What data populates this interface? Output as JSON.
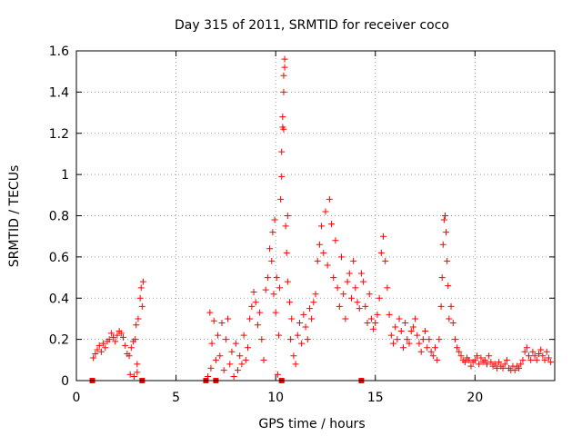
{
  "chart_data": {
    "type": "scatter",
    "title": "Day 315 of 2011, SRMTID for receiver coco",
    "xlabel": "GPS time / hours",
    "ylabel": "SRMTID / TECUs",
    "xlim": [
      0,
      24
    ],
    "ylim": [
      0,
      1.6
    ],
    "xticks": [
      0,
      5,
      10,
      15,
      20
    ],
    "xtick_labels": [
      "0",
      "5",
      "10",
      "15",
      "20"
    ],
    "yticks": [
      0,
      0.2,
      0.4,
      0.6,
      0.8,
      1,
      1.2,
      1.4,
      1.6
    ],
    "ytick_labels": [
      "0",
      "0.2",
      "0.4",
      "0.6",
      "0.8",
      "1",
      "1.2",
      "1.4",
      "1.6"
    ],
    "grid": true,
    "marker": "plus",
    "marker_color": "#ff0000",
    "series": [
      {
        "name": "SRMTID",
        "points": [
          [
            0.85,
            0.11
          ],
          [
            0.95,
            0.13
          ],
          [
            1.05,
            0.15
          ],
          [
            1.15,
            0.17
          ],
          [
            1.25,
            0.14
          ],
          [
            1.35,
            0.18
          ],
          [
            1.45,
            0.16
          ],
          [
            1.55,
            0.19
          ],
          [
            1.65,
            0.2
          ],
          [
            1.75,
            0.23
          ],
          [
            1.85,
            0.21
          ],
          [
            1.95,
            0.19
          ],
          [
            2.05,
            0.22
          ],
          [
            2.15,
            0.24
          ],
          [
            2.25,
            0.23
          ],
          [
            2.35,
            0.21
          ],
          [
            2.45,
            0.17
          ],
          [
            2.55,
            0.13
          ],
          [
            2.65,
            0.12
          ],
          [
            2.75,
            0.16
          ],
          [
            2.85,
            0.19
          ],
          [
            2.95,
            0.2
          ],
          [
            3.05,
            0.08
          ],
          [
            2.7,
            0.03
          ],
          [
            2.9,
            0.02
          ],
          [
            3.0,
            0.27
          ],
          [
            3.1,
            0.3
          ],
          [
            3.2,
            0.4
          ],
          [
            3.25,
            0.45
          ],
          [
            3.3,
            0.36
          ],
          [
            3.35,
            0.48
          ],
          [
            3.05,
            0.04
          ],
          [
            6.6,
            0.02
          ],
          [
            6.7,
            0.33
          ],
          [
            6.75,
            0.06
          ],
          [
            6.8,
            0.18
          ],
          [
            6.9,
            0.29
          ],
          [
            7.0,
            0.1
          ],
          [
            7.1,
            0.22
          ],
          [
            7.2,
            0.12
          ],
          [
            7.3,
            0.28
          ],
          [
            7.4,
            0.05
          ],
          [
            7.5,
            0.2
          ],
          [
            7.6,
            0.3
          ],
          [
            7.7,
            0.08
          ],
          [
            7.8,
            0.14
          ],
          [
            7.9,
            0.02
          ],
          [
            8.0,
            0.18
          ],
          [
            8.1,
            0.05
          ],
          [
            8.2,
            0.12
          ],
          [
            8.3,
            0.08
          ],
          [
            8.4,
            0.22
          ],
          [
            8.5,
            0.1
          ],
          [
            8.6,
            0.16
          ],
          [
            8.7,
            0.3
          ],
          [
            8.8,
            0.36
          ],
          [
            8.9,
            0.43
          ],
          [
            9.0,
            0.38
          ],
          [
            9.1,
            0.27
          ],
          [
            9.2,
            0.33
          ],
          [
            9.3,
            0.2
          ],
          [
            9.4,
            0.1
          ],
          [
            9.5,
            0.44
          ],
          [
            9.6,
            0.5
          ],
          [
            9.7,
            0.64
          ],
          [
            9.8,
            0.58
          ],
          [
            9.85,
            0.72
          ],
          [
            9.9,
            0.42
          ],
          [
            9.95,
            0.78
          ],
          [
            10.0,
            0.33
          ],
          [
            10.05,
            0.5
          ],
          [
            10.1,
            0.03
          ],
          [
            10.15,
            0.22
          ],
          [
            10.2,
            0.45
          ],
          [
            10.25,
            0.88
          ],
          [
            10.3,
            0.99
          ],
          [
            10.3,
            1.11
          ],
          [
            10.35,
            1.23
          ],
          [
            10.35,
            1.28
          ],
          [
            10.4,
            1.4
          ],
          [
            10.4,
            1.48
          ],
          [
            10.45,
            1.52
          ],
          [
            10.45,
            1.56
          ],
          [
            10.4,
            1.22
          ],
          [
            10.5,
            0.75
          ],
          [
            10.55,
            0.62
          ],
          [
            10.6,
            0.48
          ],
          [
            10.6,
            0.8
          ],
          [
            10.7,
            0.38
          ],
          [
            10.75,
            0.2
          ],
          [
            10.8,
            0.3
          ],
          [
            10.9,
            0.12
          ],
          [
            11.0,
            0.08
          ],
          [
            11.1,
            0.22
          ],
          [
            11.2,
            0.28
          ],
          [
            11.3,
            0.18
          ],
          [
            11.4,
            0.32
          ],
          [
            11.5,
            0.26
          ],
          [
            11.6,
            0.2
          ],
          [
            11.7,
            0.35
          ],
          [
            11.8,
            0.3
          ],
          [
            11.9,
            0.38
          ],
          [
            12.0,
            0.42
          ],
          [
            12.1,
            0.58
          ],
          [
            12.2,
            0.66
          ],
          [
            12.3,
            0.75
          ],
          [
            12.4,
            0.62
          ],
          [
            12.5,
            0.82
          ],
          [
            12.6,
            0.56
          ],
          [
            12.7,
            0.88
          ],
          [
            12.8,
            0.76
          ],
          [
            12.9,
            0.5
          ],
          [
            13.0,
            0.68
          ],
          [
            13.1,
            0.45
          ],
          [
            13.2,
            0.36
          ],
          [
            13.3,
            0.6
          ],
          [
            13.4,
            0.42
          ],
          [
            13.5,
            0.3
          ],
          [
            13.6,
            0.48
          ],
          [
            13.7,
            0.52
          ],
          [
            13.8,
            0.4
          ],
          [
            13.9,
            0.58
          ],
          [
            14.0,
            0.45
          ],
          [
            14.1,
            0.38
          ],
          [
            14.2,
            0.35
          ],
          [
            14.3,
            0.52
          ],
          [
            14.4,
            0.48
          ],
          [
            14.5,
            0.36
          ],
          [
            14.6,
            0.28
          ],
          [
            14.7,
            0.42
          ],
          [
            14.8,
            0.3
          ],
          [
            14.9,
            0.25
          ],
          [
            15.0,
            0.28
          ],
          [
            15.1,
            0.32
          ],
          [
            15.2,
            0.4
          ],
          [
            15.3,
            0.62
          ],
          [
            15.4,
            0.7
          ],
          [
            15.5,
            0.58
          ],
          [
            15.6,
            0.45
          ],
          [
            15.7,
            0.32
          ],
          [
            15.8,
            0.22
          ],
          [
            15.9,
            0.18
          ],
          [
            16.0,
            0.26
          ],
          [
            16.1,
            0.2
          ],
          [
            16.2,
            0.3
          ],
          [
            16.3,
            0.24
          ],
          [
            16.4,
            0.16
          ],
          [
            16.5,
            0.28
          ],
          [
            16.6,
            0.2
          ],
          [
            16.7,
            0.18
          ],
          [
            16.8,
            0.24
          ],
          [
            16.9,
            0.26
          ],
          [
            17.0,
            0.3
          ],
          [
            17.1,
            0.22
          ],
          [
            17.2,
            0.18
          ],
          [
            17.3,
            0.14
          ],
          [
            17.4,
            0.2
          ],
          [
            17.5,
            0.24
          ],
          [
            17.6,
            0.16
          ],
          [
            17.7,
            0.2
          ],
          [
            17.8,
            0.14
          ],
          [
            17.9,
            0.12
          ],
          [
            18.0,
            0.16
          ],
          [
            18.1,
            0.1
          ],
          [
            18.2,
            0.2
          ],
          [
            18.3,
            0.36
          ],
          [
            18.35,
            0.5
          ],
          [
            18.4,
            0.66
          ],
          [
            18.45,
            0.78
          ],
          [
            18.5,
            0.8
          ],
          [
            18.55,
            0.72
          ],
          [
            18.6,
            0.58
          ],
          [
            18.65,
            0.46
          ],
          [
            18.7,
            0.3
          ],
          [
            18.8,
            0.36
          ],
          [
            18.9,
            0.28
          ],
          [
            19.0,
            0.2
          ],
          [
            19.1,
            0.16
          ],
          [
            19.2,
            0.14
          ],
          [
            19.3,
            0.12
          ],
          [
            19.4,
            0.1
          ],
          [
            19.5,
            0.09
          ],
          [
            19.6,
            0.11
          ],
          [
            19.7,
            0.1
          ],
          [
            19.8,
            0.07
          ],
          [
            19.9,
            0.09
          ],
          [
            20.0,
            0.1
          ],
          [
            20.1,
            0.12
          ],
          [
            20.2,
            0.08
          ],
          [
            20.3,
            0.11
          ],
          [
            20.4,
            0.09
          ],
          [
            20.5,
            0.1
          ],
          [
            20.6,
            0.08
          ],
          [
            20.7,
            0.12
          ],
          [
            20.8,
            0.09
          ],
          [
            20.9,
            0.07
          ],
          [
            21.0,
            0.08
          ],
          [
            21.1,
            0.06
          ],
          [
            21.2,
            0.09
          ],
          [
            21.3,
            0.07
          ],
          [
            21.4,
            0.06
          ],
          [
            21.5,
            0.08
          ],
          [
            21.6,
            0.1
          ],
          [
            21.7,
            0.06
          ],
          [
            21.8,
            0.05
          ],
          [
            21.9,
            0.07
          ],
          [
            22.0,
            0.05
          ],
          [
            22.1,
            0.07
          ],
          [
            22.2,
            0.06
          ],
          [
            22.3,
            0.08
          ],
          [
            22.4,
            0.1
          ],
          [
            22.5,
            0.14
          ],
          [
            22.6,
            0.16
          ],
          [
            22.7,
            0.12
          ],
          [
            22.8,
            0.1
          ],
          [
            22.9,
            0.14
          ],
          [
            23.0,
            0.12
          ],
          [
            23.1,
            0.1
          ],
          [
            23.2,
            0.13
          ],
          [
            23.3,
            0.15
          ],
          [
            23.4,
            0.12
          ],
          [
            23.5,
            0.1
          ],
          [
            23.6,
            0.14
          ],
          [
            23.7,
            0.11
          ],
          [
            23.8,
            0.09
          ]
        ]
      }
    ],
    "baseline_markers": [
      0.8,
      3.3,
      6.5,
      7.0,
      10.3,
      14.3
    ]
  }
}
